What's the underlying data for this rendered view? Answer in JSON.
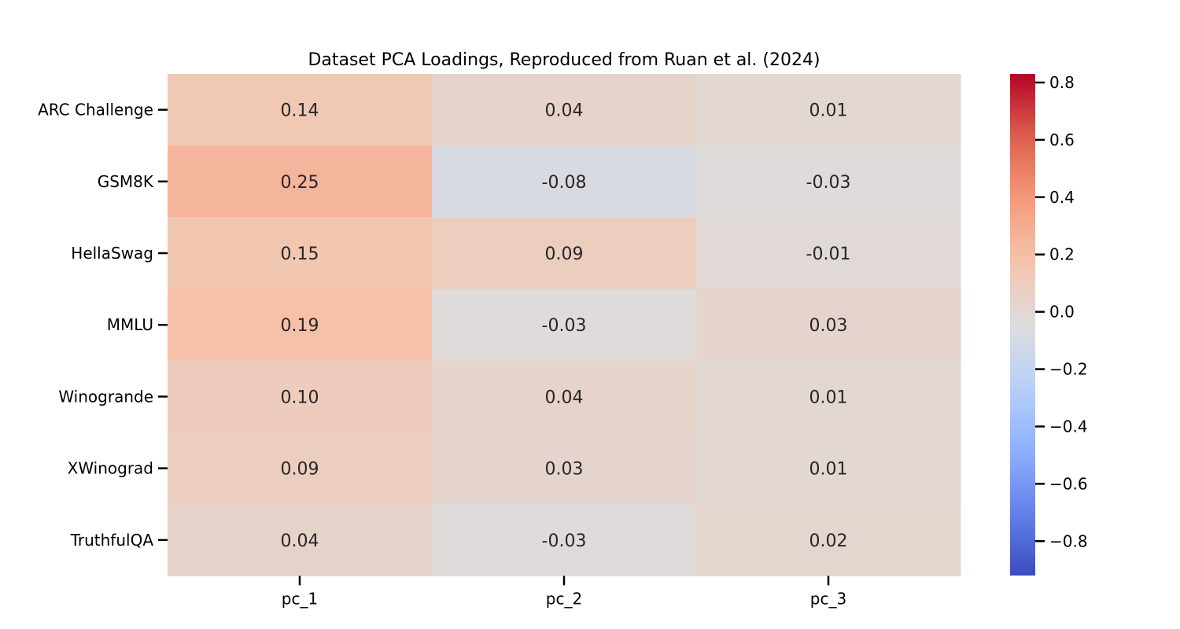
{
  "chart_data": {
    "type": "heatmap",
    "title": "Dataset PCA Loadings, Reproduced from Ruan et al. (2024)",
    "rows": [
      "ARC Challenge",
      "GSM8K",
      "HellaSwag",
      "MMLU",
      "Winogrande",
      "XWinograd",
      "TruthfulQA"
    ],
    "columns": [
      "pc_1",
      "pc_2",
      "pc_3"
    ],
    "values": [
      [
        0.14,
        0.04,
        0.01
      ],
      [
        0.25,
        -0.08,
        -0.03
      ],
      [
        0.15,
        0.09,
        -0.01
      ],
      [
        0.19,
        -0.03,
        0.03
      ],
      [
        0.1,
        0.04,
        0.01
      ],
      [
        0.09,
        0.03,
        0.01
      ],
      [
        0.04,
        -0.03,
        0.02
      ]
    ],
    "value_labels": [
      [
        "0.14",
        "0.04",
        "0.01"
      ],
      [
        "0.25",
        "-0.08",
        "-0.03"
      ],
      [
        "0.15",
        "0.09",
        "-0.01"
      ],
      [
        "0.19",
        "-0.03",
        "0.03"
      ],
      [
        "0.10",
        "0.04",
        "0.01"
      ],
      [
        "0.09",
        "0.03",
        "0.01"
      ],
      [
        "0.04",
        "-0.03",
        "0.02"
      ]
    ],
    "colormap": "coolwarm",
    "vmin": -0.92,
    "vmax": 0.83,
    "colorbar_ticks": [
      0.8,
      0.6,
      0.4,
      0.2,
      0.0,
      -0.2,
      -0.4,
      -0.6,
      -0.8
    ],
    "colorbar_tick_labels": [
      "0.8",
      "0.6",
      "0.4",
      "0.2",
      "0.0",
      "−0.2",
      "−0.4",
      "−0.6",
      "−0.8"
    ],
    "colorbar_position": "right"
  }
}
